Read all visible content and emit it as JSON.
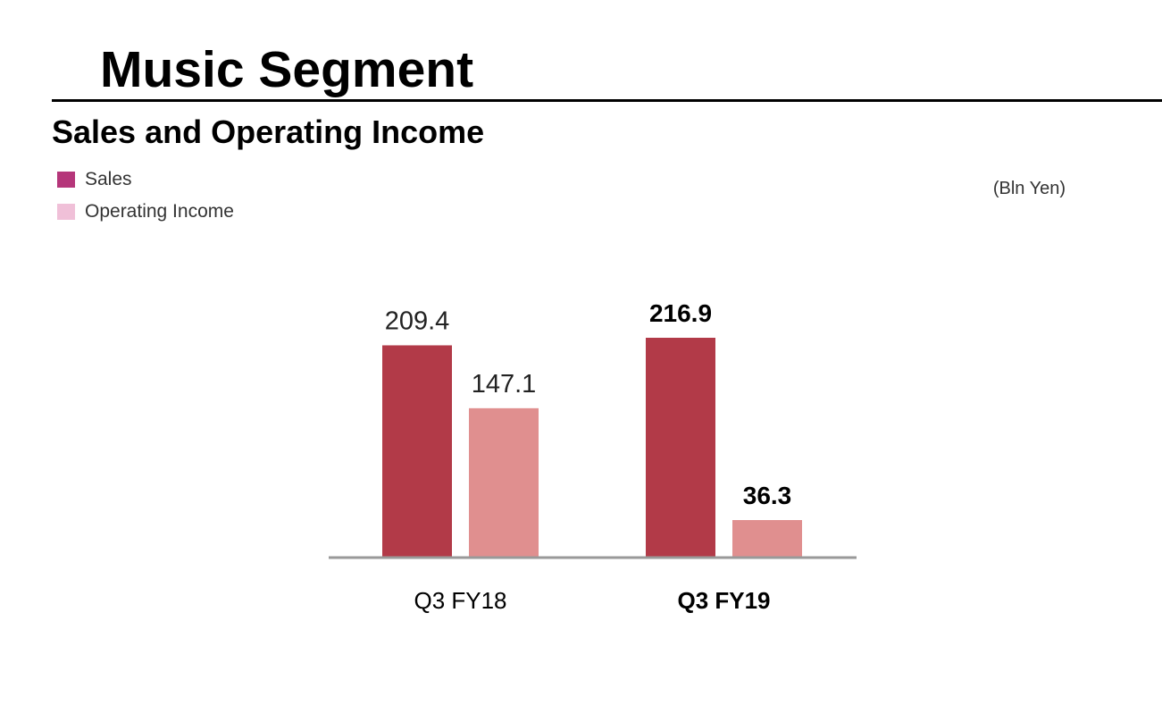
{
  "header": {
    "title": "Music Segment",
    "subtitle": "Sales and Operating Income",
    "unit": "(Bln Yen)"
  },
  "legend": [
    {
      "label": "Sales",
      "color": "#b5367a"
    },
    {
      "label": "Operating Income",
      "color": "#f0c0d8"
    }
  ],
  "chart_data": {
    "type": "bar",
    "title": "Sales and Operating Income",
    "xlabel": "",
    "ylabel": "",
    "unit": "(Bln Yen)",
    "categories": [
      "Q3 FY18",
      "Q3 FY19"
    ],
    "category_bold": [
      false,
      true
    ],
    "series": [
      {
        "name": "Sales",
        "values": [
          209.4,
          216.9
        ],
        "color": "#b23a48",
        "labels": [
          "209.4",
          "216.9"
        ]
      },
      {
        "name": "Operating Income",
        "values": [
          147.1,
          36.3
        ],
        "color": "#e08f8f",
        "labels": [
          "147.1",
          "36.3"
        ]
      }
    ],
    "ylim": [
      0,
      216.9
    ],
    "legend_position": "top-left",
    "grid": false,
    "axis_color": "#999999"
  }
}
